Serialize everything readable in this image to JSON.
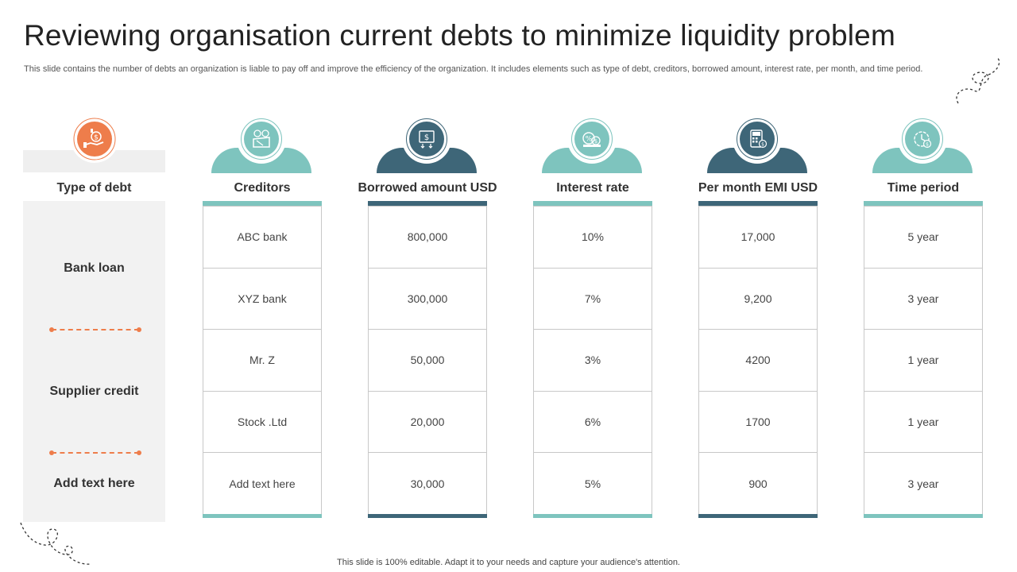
{
  "title": "Reviewing organisation current debts to minimize liquidity problem",
  "subtitle": "This slide contains the number of debts an organization is liable to pay off and improve the efficiency of the organization. It includes elements such as type of debt, creditors, borrowed amount, interest rate,  per month, and time period.",
  "footer": "This slide is 100% editable. Adapt it to your needs and capture your audience's attention.",
  "colors": {
    "teal": "#7ec4be",
    "dark": "#3e6678",
    "orange": "#ee7d4b",
    "grey": "#f2f2f2"
  },
  "type_column": {
    "header": "Type of debt",
    "icon": "hand-money-icon",
    "items": [
      "Bank loan",
      "Supplier credit",
      "Add text here"
    ]
  },
  "columns": [
    {
      "header": "Creditors",
      "icon": "wallet-money-icon",
      "theme": "teal",
      "rows": [
        "ABC bank",
        "XYZ  bank",
        "Mr. Z",
        "Stock .Ltd",
        "Add text here"
      ]
    },
    {
      "header": "Borrowed amount USD",
      "icon": "dollar-download-icon",
      "theme": "dark",
      "rows": [
        "800,000",
        "300,000",
        "50,000",
        "20,000",
        "30,000"
      ]
    },
    {
      "header": "Interest rate",
      "icon": "coins-percent-icon",
      "theme": "teal",
      "rows": [
        "10%",
        "7%",
        "3%",
        "6%",
        "5%"
      ]
    },
    {
      "header": "Per month EMI USD",
      "icon": "emi-calculator-icon",
      "theme": "dark",
      "rows": [
        "17,000",
        "9,200",
        "4200",
        "1700",
        "900"
      ]
    },
    {
      "header": "Time period",
      "icon": "clock-dollar-icon",
      "theme": "teal",
      "rows": [
        "5 year",
        "3 year",
        "1 year",
        "1 year",
        "3 year"
      ]
    }
  ]
}
